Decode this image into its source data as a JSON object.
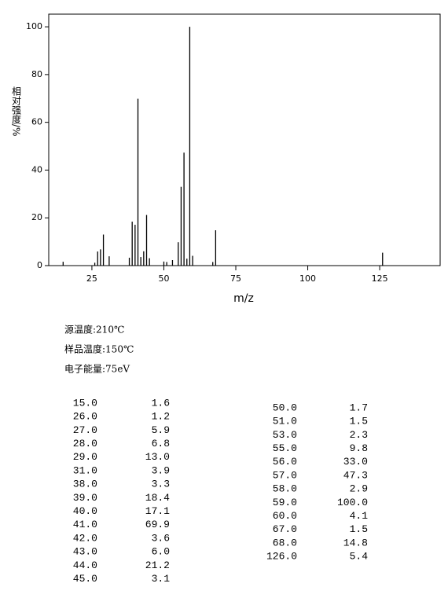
{
  "chart_data": {
    "type": "bar",
    "xlabel": "m/z",
    "ylabel": "相对强度/%",
    "x": [
      15,
      26,
      27,
      28,
      29,
      31,
      38,
      39,
      40,
      41,
      42,
      43,
      44,
      45,
      50,
      51,
      53,
      55,
      56,
      57,
      58,
      59,
      60,
      67,
      68,
      126
    ],
    "x_labels": [
      "15.0",
      "26.0",
      "27.0",
      "28.0",
      "29.0",
      "31.0",
      "38.0",
      "39.0",
      "40.0",
      "41.0",
      "42.0",
      "43.0",
      "44.0",
      "45.0",
      "50.0",
      "51.0",
      "53.0",
      "55.0",
      "56.0",
      "57.0",
      "58.0",
      "59.0",
      "60.0",
      "67.0",
      "68.0",
      "126.0"
    ],
    "values": [
      1.6,
      1.2,
      5.9,
      6.8,
      13.0,
      3.9,
      3.3,
      18.4,
      17.1,
      69.9,
      3.6,
      6.0,
      21.2,
      3.1,
      1.7,
      1.5,
      2.3,
      9.8,
      33.0,
      47.3,
      2.9,
      100.0,
      4.1,
      1.5,
      14.8,
      5.4
    ],
    "value_labels": [
      "1.6",
      "1.2",
      "5.9",
      "6.8",
      "13.0",
      "3.9",
      "3.3",
      "18.4",
      "17.1",
      "69.9",
      "3.6",
      "6.0",
      "21.2",
      "3.1",
      "1.7",
      "1.5",
      "2.3",
      "9.8",
      "33.0",
      "47.3",
      "2.9",
      "100.0",
      "4.1",
      "1.5",
      "14.8",
      "5.4"
    ],
    "color": "#000000",
    "xlim": [
      10,
      146
    ],
    "xticks": [
      25,
      50,
      75,
      100,
      125
    ],
    "ylim": [
      0,
      105.3
    ],
    "yticks": [
      0,
      20,
      40,
      60,
      80,
      100
    ]
  },
  "conditions": [
    "源温度:210℃",
    "样品温度:150℃",
    "电子能量:75eV"
  ]
}
